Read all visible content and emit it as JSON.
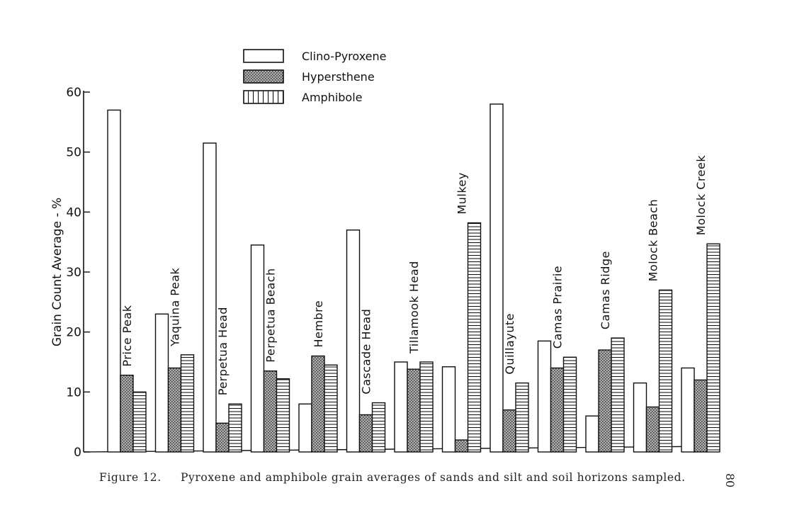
{
  "chart_data": {
    "type": "bar",
    "title": "",
    "ylabel": "Grain Count Average - %",
    "xlabel": "",
    "ylim": [
      0,
      60
    ],
    "yticks": [
      0,
      10,
      20,
      30,
      40,
      50,
      60
    ],
    "categories": [
      "Price Peak",
      "Yaquina Peak",
      "Perpetua Head",
      "Perpetua Beach",
      "Hembre",
      "Cascade Head",
      "Tillamook Head",
      "Mulkey",
      "Quillayute",
      "Camas Prairie",
      "Camas Ridge",
      "Molock Beach",
      "Molock Creek"
    ],
    "series": [
      {
        "name": "Clino-Pyroxene",
        "pattern": "open",
        "values": [
          57,
          23,
          51.5,
          34.5,
          8,
          37,
          15,
          14.2,
          58,
          18.5,
          6,
          11.5,
          14
        ]
      },
      {
        "name": "Hypersthene",
        "pattern": "stipple",
        "values": [
          12.8,
          14,
          4.8,
          13.5,
          16,
          6.2,
          13.8,
          2,
          7,
          14,
          17,
          7.5,
          12
        ]
      },
      {
        "name": "Amphibole",
        "pattern": "hatched",
        "values": [
          10,
          16.2,
          8,
          12.2,
          14.5,
          8.2,
          15,
          38.2,
          11.5,
          15.8,
          19,
          27,
          34.7
        ]
      }
    ],
    "legend_position": "top-center",
    "grid": false
  },
  "caption": {
    "label": "Figure 12.",
    "text": "Pyroxene and amphibole grain averages of sands and silt and soil horizons sampled."
  },
  "page_number": "80",
  "colors": {
    "ink": "#111111",
    "background": "#ffffff"
  }
}
